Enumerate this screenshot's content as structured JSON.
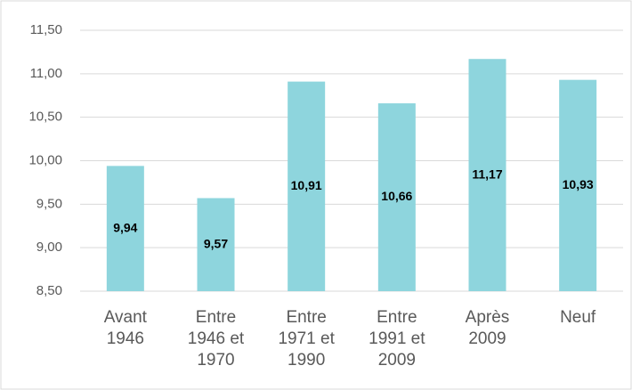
{
  "chart_data": {
    "type": "bar",
    "categories": [
      "Avant 1946",
      "Entre 1946 et 1970",
      "Entre 1971 et 1990",
      "Entre 1991 et 2009",
      "Après 2009",
      "Neuf"
    ],
    "values": [
      9.94,
      9.57,
      10.91,
      10.66,
      11.17,
      10.93
    ],
    "value_labels": [
      "9,94",
      "9,57",
      "10,91",
      "10,66",
      "11,17",
      "10,93"
    ],
    "color": "#8ed5dd",
    "ylim": [
      8.5,
      11.5
    ],
    "yticks": [
      {
        "value": 8.5,
        "label": "8,50"
      },
      {
        "value": 9,
        "label": "9,00"
      },
      {
        "value": 9.5,
        "label": "9,50"
      },
      {
        "value": 10,
        "label": "10,00"
      },
      {
        "value": 10.5,
        "label": "10,50"
      },
      {
        "value": 11,
        "label": "11,00"
      },
      {
        "value": 11.5,
        "label": "11,50"
      }
    ],
    "grid": true
  }
}
